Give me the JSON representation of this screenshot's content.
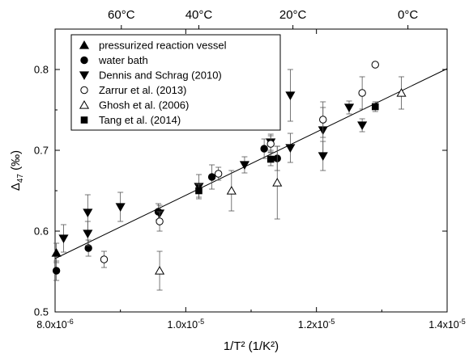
{
  "chart_data": {
    "type": "scatter",
    "title": "",
    "xlabel": "1/T² (1/K²)",
    "ylabel": "Δ47 (‰)",
    "xlim": [
      8e-06,
      1.4e-05
    ],
    "ylim": [
      0.5,
      0.85
    ],
    "x_ticks": [
      {
        "value": 8e-06,
        "label": "8.0x10-6"
      },
      {
        "value": 1e-05,
        "label": "1.0x10-5"
      },
      {
        "value": 1.2e-05,
        "label": "1.2x10-5"
      },
      {
        "value": 1.4e-05,
        "label": "1.4x10-5"
      }
    ],
    "y_ticks": [
      {
        "value": 0.5,
        "label": "0.5"
      },
      {
        "value": 0.6,
        "label": "0.6"
      },
      {
        "value": 0.7,
        "label": "0.7"
      },
      {
        "value": 0.8,
        "label": "0.8"
      }
    ],
    "top_axis": [
      {
        "label": "60°C",
        "x": 9.014e-06
      },
      {
        "label": "40°C",
        "x": 1.02e-05
      },
      {
        "label": "20°C",
        "x": 1.164e-05
      },
      {
        "label": "0°C",
        "x": 1.34e-05
      }
    ],
    "legend": {
      "position": "top-left"
    },
    "fit_line": {
      "x": [
        8e-06,
        1.4e-05
      ],
      "y": [
        0.566,
        0.801
      ]
    },
    "series": [
      {
        "name": "pressurized reaction vessel",
        "marker": "triangle-filled",
        "points": [
          {
            "x": 8.02e-06,
            "y": 0.573,
            "err": 0.012
          }
        ]
      },
      {
        "name": "water bath",
        "marker": "circle-filled",
        "points": [
          {
            "x": 8.02e-06,
            "y": 0.551,
            "err": 0.012
          },
          {
            "x": 8.51e-06,
            "y": 0.579,
            "err": 0.01
          },
          {
            "x": 9.58e-06,
            "y": 0.624,
            "err": 0.01
          },
          {
            "x": 1.04e-05,
            "y": 0.667,
            "err": 0.015
          },
          {
            "x": 1.12e-05,
            "y": 0.702,
            "err": 0.012
          },
          {
            "x": 1.14e-05,
            "y": 0.69,
            "err": 0.015
          }
        ]
      },
      {
        "name": "Dennis and Schrag (2010)",
        "marker": "triangle-down-filled",
        "points": [
          {
            "x": 8.13e-06,
            "y": 0.591,
            "err": 0.017
          },
          {
            "x": 8.5e-06,
            "y": 0.623,
            "err": 0.022
          },
          {
            "x": 8.5e-06,
            "y": 0.597,
            "err": 0.015
          },
          {
            "x": 9e-06,
            "y": 0.63,
            "err": 0.018
          },
          {
            "x": 9.6e-06,
            "y": 0.622,
            "err": 0.01
          },
          {
            "x": 1.02e-05,
            "y": 0.655,
            "err": 0.015
          },
          {
            "x": 1.09e-05,
            "y": 0.682,
            "err": 0.01
          },
          {
            "x": 1.13e-05,
            "y": 0.71,
            "err": 0.01
          },
          {
            "x": 1.16e-05,
            "y": 0.703,
            "err": 0.018
          },
          {
            "x": 1.16e-05,
            "y": 0.768,
            "err": 0.032
          },
          {
            "x": 1.21e-05,
            "y": 0.725,
            "err": 0.028
          },
          {
            "x": 1.21e-05,
            "y": 0.693,
            "err": 0.018
          },
          {
            "x": 1.25e-05,
            "y": 0.753,
            "err": 0.008
          },
          {
            "x": 1.27e-05,
            "y": 0.731,
            "err": 0.008
          }
        ]
      },
      {
        "name": "Zarrur et al. (2013)",
        "marker": "circle-open",
        "points": [
          {
            "x": 8.75e-06,
            "y": 0.565,
            "err": 0.01
          },
          {
            "x": 9.6e-06,
            "y": 0.612,
            "err": 0.012
          },
          {
            "x": 1.05e-05,
            "y": 0.671,
            "err": 0.008
          },
          {
            "x": 1.13e-05,
            "y": 0.708,
            "err": 0.01
          },
          {
            "x": 1.21e-05,
            "y": 0.738,
            "err": 0.022
          },
          {
            "x": 1.27e-05,
            "y": 0.771,
            "err": 0.02
          },
          {
            "x": 1.29e-05,
            "y": 0.806,
            "err": 0.0
          }
        ]
      },
      {
        "name": "Ghosh et al. (2006)",
        "marker": "triangle-open",
        "points": [
          {
            "x": 9.6e-06,
            "y": 0.551,
            "err": 0.024
          },
          {
            "x": 1.07e-05,
            "y": 0.65,
            "err": 0.025
          },
          {
            "x": 1.14e-05,
            "y": 0.66,
            "err": 0.045
          },
          {
            "x": 1.33e-05,
            "y": 0.771,
            "err": 0.02
          }
        ]
      },
      {
        "name": "Tang et al. (2014)",
        "marker": "square-filled",
        "points": [
          {
            "x": 1.02e-05,
            "y": 0.65,
            "err": 0.008
          },
          {
            "x": 1.13e-05,
            "y": 0.689,
            "err": 0.008
          },
          {
            "x": 1.29e-05,
            "y": 0.754,
            "err": 0.006
          }
        ]
      }
    ]
  }
}
